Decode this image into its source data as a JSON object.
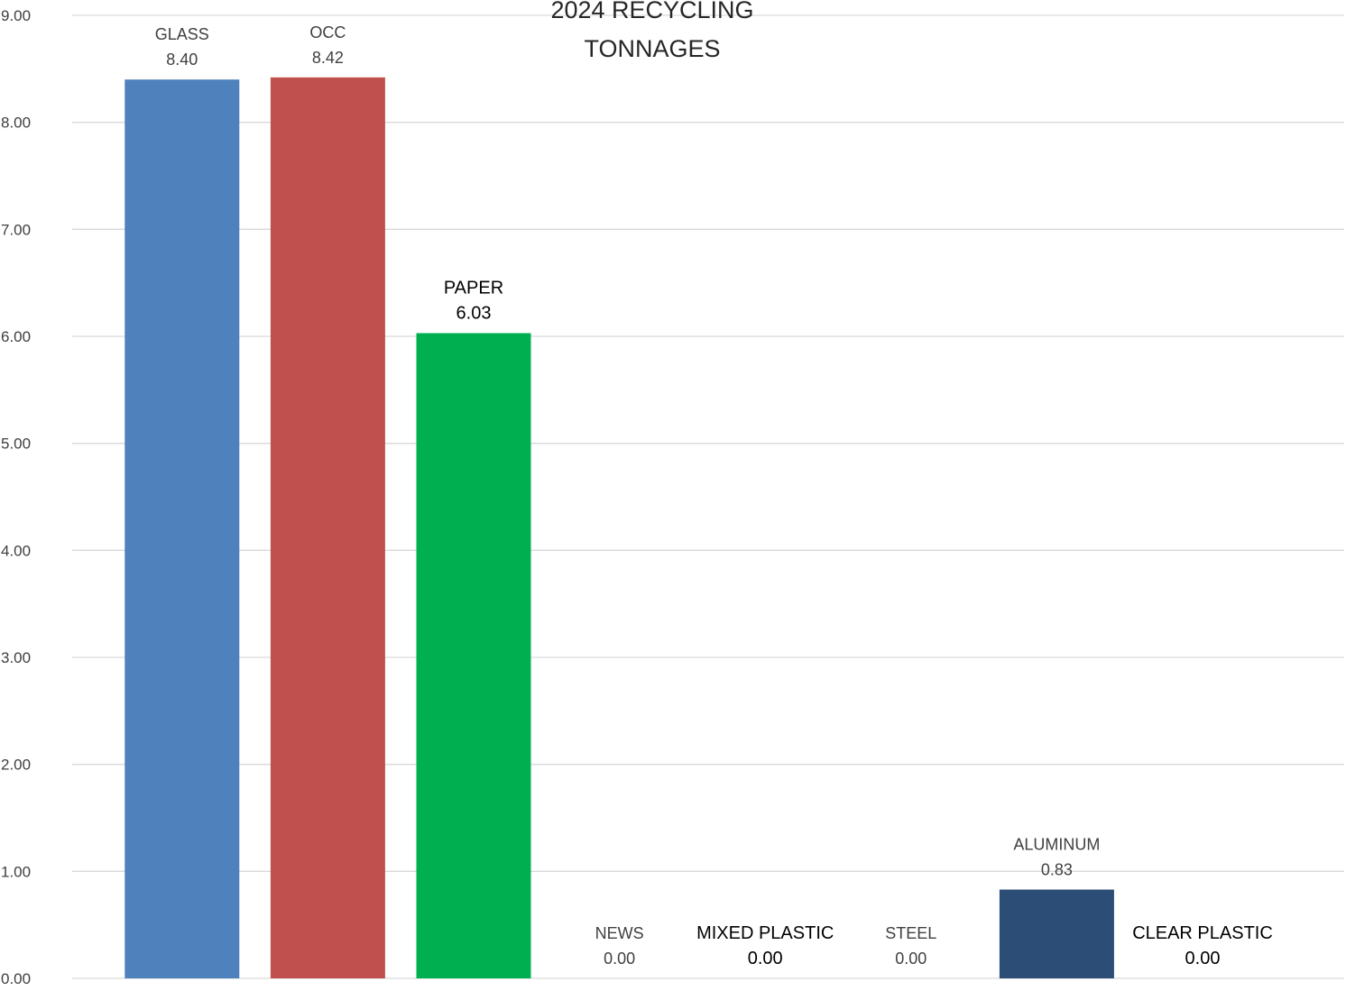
{
  "chart_data": {
    "type": "bar",
    "title_lines": [
      "2024 RECYCLING",
      "TONNAGES"
    ],
    "categories": [
      "GLASS",
      "OCC",
      "PAPER",
      "NEWS",
      "MIXED PLASTIC",
      "STEEL",
      "ALUMINUM",
      "CLEAR PLASTIC"
    ],
    "values": [
      8.4,
      8.42,
      6.03,
      0.0,
      0.0,
      0.0,
      0.83,
      0.0
    ],
    "value_labels": [
      "8.40",
      "8.42",
      "6.03",
      "0.00",
      "0.00",
      "0.00",
      "0.83",
      "0.00"
    ],
    "colors": [
      "#4f81bd",
      "#c0504d",
      "#00b050",
      "#4f81bd",
      "#4f81bd",
      "#4f81bd",
      "#2c4d75",
      "#4f81bd"
    ],
    "label_emphasis": [
      false,
      false,
      true,
      false,
      true,
      false,
      false,
      true
    ],
    "ylim": [
      0,
      9
    ],
    "yticks": [
      "0.00",
      "1.00",
      "2.00",
      "3.00",
      "4.00",
      "5.00",
      "6.00",
      "7.00",
      "8.00",
      "9.00"
    ],
    "xlabel": "",
    "ylabel": "",
    "grid": true,
    "legend": "none"
  }
}
